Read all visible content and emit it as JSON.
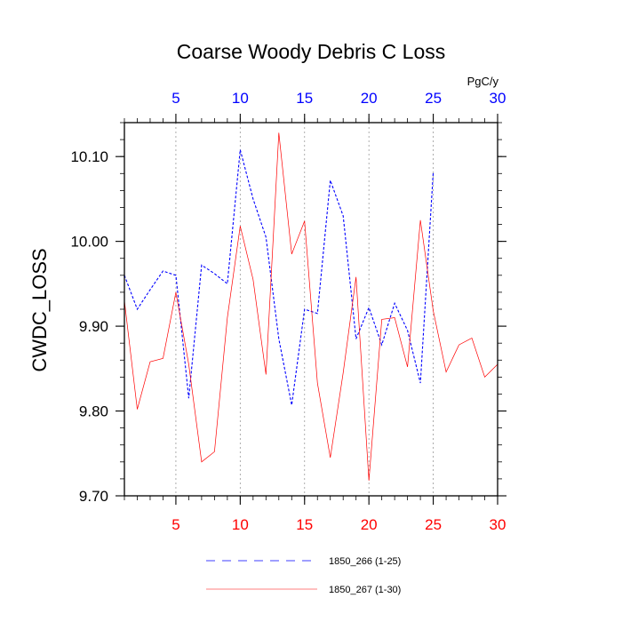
{
  "chart_data": {
    "type": "line",
    "title": "Coarse Woody Debris C Loss",
    "ylabel": "CWDC_LOSS",
    "units": "PgC/y",
    "xlim": [
      1,
      30
    ],
    "ylim": [
      9.7,
      10.14
    ],
    "grid": "vertical dotted at 5, 10, 15, 20, 25",
    "legend_position": "bottom",
    "yticks": [
      "9.70",
      "9.80",
      "9.90",
      "10.00",
      "10.10"
    ],
    "xticks_top": [
      "5",
      "10",
      "15",
      "20",
      "25",
      "30"
    ],
    "xticks_bottom": [
      "5",
      "10",
      "15",
      "20",
      "25",
      "30"
    ],
    "series": [
      {
        "name": "1850_266 (1-25)",
        "color": "#0000ff",
        "style": "dashed",
        "x": [
          1,
          2,
          3,
          4,
          5,
          6,
          7,
          8,
          9,
          10,
          11,
          12,
          13,
          14,
          15,
          16,
          17,
          18,
          19,
          20,
          21,
          22,
          23,
          24,
          25
        ],
        "values": [
          9.96,
          9.92,
          9.943,
          9.965,
          9.96,
          9.815,
          9.972,
          9.962,
          9.95,
          10.108,
          10.05,
          10.005,
          9.885,
          9.807,
          9.92,
          9.915,
          10.072,
          10.03,
          9.885,
          9.922,
          9.878,
          9.927,
          9.895,
          9.833,
          10.082
        ]
      },
      {
        "name": "1850_267 (1-30)",
        "color": "#ff0000",
        "style": "solid",
        "x": [
          1,
          2,
          3,
          4,
          5,
          6,
          7,
          8,
          9,
          10,
          11,
          12,
          13,
          14,
          15,
          16,
          17,
          18,
          19,
          20,
          21,
          22,
          23,
          24,
          25,
          26,
          27,
          28,
          29,
          30
        ],
        "values": [
          9.93,
          9.802,
          9.858,
          9.862,
          9.94,
          9.855,
          9.74,
          9.752,
          9.91,
          10.018,
          9.955,
          9.843,
          10.128,
          9.985,
          10.024,
          9.833,
          9.745,
          9.845,
          9.958,
          9.718,
          9.908,
          9.91,
          9.852,
          10.025,
          9.918,
          9.846,
          9.878,
          9.886,
          9.84,
          9.855
        ]
      }
    ]
  }
}
